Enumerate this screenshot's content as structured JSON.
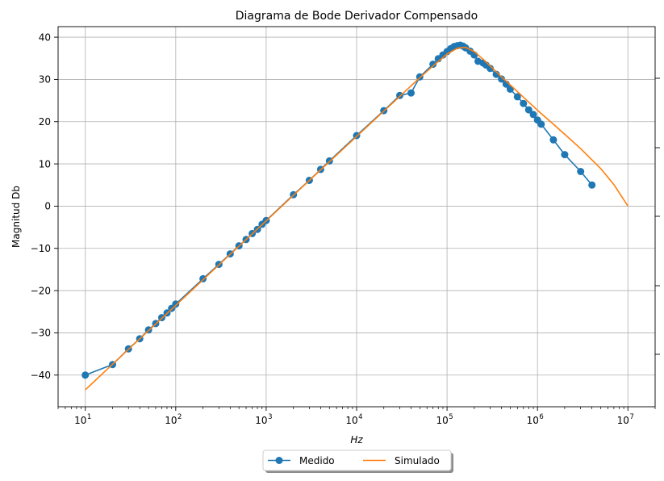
{
  "chart_data": {
    "type": "line",
    "title": "Diagrama de Bode Derivador Compensado",
    "xlabel": "Hz",
    "ylabel": "Magnitud Db",
    "x_scale": "log",
    "xlim": [
      5,
      20000000
    ],
    "ylim": [
      -47.5,
      42.5
    ],
    "x_ticks": [
      {
        "value": 10,
        "base": "10",
        "exp": "1"
      },
      {
        "value": 100,
        "base": "10",
        "exp": "2"
      },
      {
        "value": 1000,
        "base": "10",
        "exp": "3"
      },
      {
        "value": 10000,
        "base": "10",
        "exp": "4"
      },
      {
        "value": 100000,
        "base": "10",
        "exp": "5"
      },
      {
        "value": 1000000,
        "base": "10",
        "exp": "6"
      },
      {
        "value": 10000000,
        "base": "10",
        "exp": "7"
      }
    ],
    "y_ticks": [
      {
        "value": 40,
        "label": "40"
      },
      {
        "value": 30,
        "label": "30"
      },
      {
        "value": 20,
        "label": "20"
      },
      {
        "value": 10,
        "label": "10"
      },
      {
        "value": 0,
        "label": "0"
      },
      {
        "value": -10,
        "label": "−10"
      },
      {
        "value": -20,
        "label": "−20"
      },
      {
        "value": -30,
        "label": "−30"
      },
      {
        "value": -40,
        "label": "−40"
      }
    ],
    "grid": true,
    "legend_position": "bottom-center",
    "series": [
      {
        "name": "Medido",
        "color": "#1f77b4",
        "marker": "circle",
        "x": [
          10,
          20,
          30,
          40,
          50,
          60,
          70,
          80,
          90,
          100,
          200,
          300,
          400,
          500,
          600,
          700,
          800,
          900,
          1000,
          2000,
          3000,
          4000,
          5000,
          10000,
          20000,
          30000,
          40000,
          50000,
          70000,
          80000,
          90000,
          100000,
          110000,
          120000,
          130000,
          140000,
          150000,
          160000,
          180000,
          200000,
          220000,
          250000,
          270000,
          300000,
          350000,
          400000,
          450000,
          500000,
          600000,
          700000,
          800000,
          900000,
          1000000,
          1100000,
          1500000,
          2000000,
          3000000,
          4000000
        ],
        "y": [
          -40,
          -37.5,
          -33.8,
          -31.4,
          -29.3,
          -27.8,
          -26.4,
          -25.3,
          -24.2,
          -23.2,
          -17.2,
          -13.8,
          -11.3,
          -9.4,
          -7.9,
          -6.5,
          -5.5,
          -4.3,
          -3.4,
          2.7,
          6.1,
          8.7,
          10.7,
          16.7,
          22.6,
          26.2,
          26.8,
          30.6,
          33.6,
          34.9,
          35.8,
          36.6,
          37.3,
          37.8,
          38.0,
          38.1,
          37.9,
          37.5,
          36.7,
          35.8,
          34.3,
          33.9,
          33.4,
          32.6,
          31.2,
          30.1,
          28.9,
          27.7,
          25.9,
          24.3,
          22.8,
          21.7,
          20.4,
          19.4,
          15.7,
          12.2,
          8.2,
          5.0
        ]
      },
      {
        "name": "Simulado",
        "color": "#ff7f0e",
        "marker": "none",
        "x": [
          10,
          30,
          100,
          300,
          1000,
          3000,
          10000,
          20000,
          30000,
          50000,
          70000,
          100000,
          130000,
          160000,
          200000,
          250000,
          300000,
          400000,
          500000,
          700000,
          1000000,
          1500000,
          2000000,
          3000000,
          5000000,
          7000000,
          10000000
        ],
        "y": [
          -43.5,
          -33.9,
          -23.5,
          -13.9,
          -3.5,
          6.1,
          16.5,
          22.5,
          26.0,
          30.4,
          33.2,
          36.0,
          37.4,
          37.6,
          36.6,
          34.8,
          33.2,
          30.6,
          28.7,
          25.8,
          22.7,
          19.4,
          17.0,
          13.6,
          8.9,
          5.1,
          0.0
        ]
      }
    ]
  }
}
